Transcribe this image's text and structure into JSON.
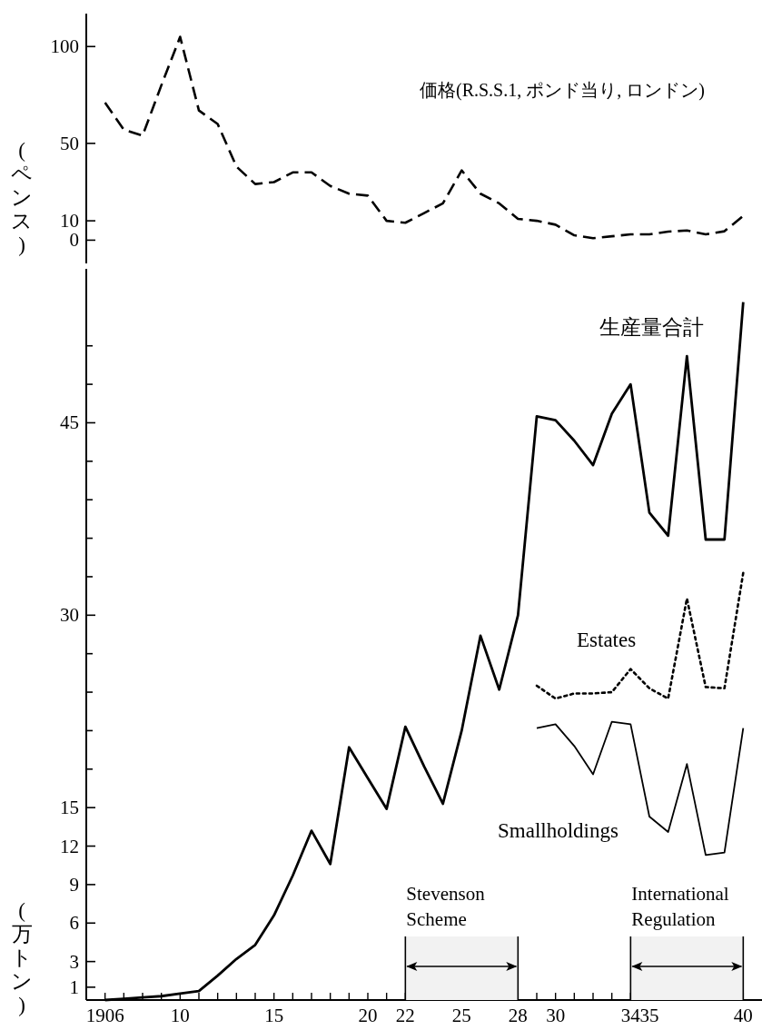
{
  "chart_data": [
    {
      "type": "line",
      "ylabel": "(ペンス)",
      "ylim": [
        -12,
        117
      ],
      "yticks": [
        0,
        10,
        50,
        100
      ],
      "categories": [
        null,
        null,
        null,
        null,
        null,
        null,
        null,
        null,
        null,
        null,
        null,
        null,
        null,
        null,
        null,
        null,
        null,
        null,
        null,
        null,
        null,
        null,
        null,
        null,
        null,
        null,
        null,
        null,
        null,
        null,
        null,
        null,
        null,
        null,
        null
      ],
      "series": [
        {
          "name": "価格(R.S.S.1, ポンド当り, ロンドン)",
          "color": "#000000",
          "line_style": "dashed",
          "values": [
            71,
            57,
            54,
            80,
            105,
            67,
            60,
            38,
            29,
            30,
            35,
            35,
            28,
            24,
            23,
            10,
            9,
            14,
            19,
            36,
            24,
            19,
            11,
            10,
            8,
            2.5,
            1,
            2,
            3,
            3,
            4.4,
            5,
            3,
            4.6,
            12.5
          ]
        }
      ]
    },
    {
      "type": "line",
      "ylabel": "(万トン)",
      "xlim": [
        1905,
        1941
      ],
      "ylim": [
        0,
        57
      ],
      "xticks": [
        1906,
        {
          "value": 1907,
          "label": null
        },
        {
          "value": 1908,
          "label": null
        },
        {
          "value": 1909,
          "label": null
        },
        {
          "value": 1910,
          "label": "10"
        },
        {
          "value": 1911,
          "label": null
        },
        {
          "value": 1912,
          "label": null
        },
        {
          "value": 1913,
          "label": null
        },
        {
          "value": 1914,
          "label": null
        },
        {
          "value": 1915,
          "label": "15"
        },
        {
          "value": 1916,
          "label": null
        },
        {
          "value": 1917,
          "label": null
        },
        {
          "value": 1918,
          "label": null
        },
        {
          "value": 1919,
          "label": null
        },
        {
          "value": 1920,
          "label": "20"
        },
        {
          "value": 1921,
          "label": null
        },
        {
          "value": 1922,
          "label": "22"
        },
        {
          "value": 1923,
          "label": null
        },
        {
          "value": 1924,
          "label": null
        },
        {
          "value": 1925,
          "label": "25"
        },
        {
          "value": 1926,
          "label": null
        },
        {
          "value": 1927,
          "label": null
        },
        {
          "value": 1928,
          "label": "28"
        },
        {
          "value": 1929,
          "label": null
        },
        {
          "value": 1930,
          "label": "30"
        },
        {
          "value": 1931,
          "label": null
        },
        {
          "value": 1932,
          "label": null
        },
        {
          "value": 1933,
          "label": null
        },
        {
          "value": 1934,
          "label": "34"
        },
        {
          "value": 1935,
          "label": "35"
        },
        {
          "value": 1936,
          "label": null
        },
        {
          "value": 1937,
          "label": null
        },
        {
          "value": 1938,
          "label": null
        },
        {
          "value": 1939,
          "label": null
        },
        {
          "value": 1940,
          "label": "40"
        }
      ],
      "yticks": [
        1,
        3,
        6,
        9,
        12,
        15,
        {
          "value": 18,
          "label": null
        },
        {
          "value": 21,
          "label": null
        },
        {
          "value": 24,
          "label": null
        },
        {
          "value": 27,
          "label": null
        },
        30,
        {
          "value": 33,
          "label": null
        },
        {
          "value": 36,
          "label": null
        },
        {
          "value": 39,
          "label": null
        },
        {
          "value": 42,
          "label": null
        },
        45,
        {
          "value": 48,
          "label": null
        },
        {
          "value": 51,
          "label": null
        }
      ],
      "x": [
        1906,
        1907,
        1908,
        1909,
        1910,
        1911,
        1912,
        1913,
        1914,
        1915,
        1916,
        1917,
        1918,
        1919,
        1920,
        1921,
        1922,
        1923,
        1924,
        1925,
        1926,
        1927,
        1928,
        1929,
        1930,
        1931,
        1932,
        1933,
        1934,
        1935,
        1936,
        1937,
        1938,
        1939,
        1940
      ],
      "series": [
        {
          "name": "生産量合計",
          "color": "#000000",
          "line_style": "solid",
          "values": [
            0,
            0.1,
            0.2,
            0.3,
            0.5,
            0.7,
            1.9,
            3.2,
            4.3,
            6.6,
            9.7,
            13.2,
            10.6,
            19.7,
            17.3,
            14.9,
            21.3,
            18.2,
            15.3,
            21,
            28.4,
            24.2,
            30,
            45.5,
            45.2,
            43.6,
            41.7,
            45.7,
            48,
            38,
            36.2,
            50.2,
            35.9,
            35.9,
            54.4
          ]
        },
        {
          "name": "Estates",
          "color": "#000000",
          "line_style": "dotted",
          "values": [
            null,
            null,
            null,
            null,
            null,
            null,
            null,
            null,
            null,
            null,
            null,
            null,
            null,
            null,
            null,
            null,
            null,
            null,
            null,
            null,
            null,
            null,
            null,
            24.5,
            23.5,
            23.9,
            23.9,
            24,
            25.8,
            24.3,
            23.5,
            31.3,
            24.4,
            24.3,
            33.3
          ]
        },
        {
          "name": "Smallholdings",
          "color": "#000000",
          "line_style": "solid",
          "values": [
            null,
            null,
            null,
            null,
            null,
            null,
            null,
            null,
            null,
            null,
            null,
            null,
            null,
            null,
            null,
            null,
            null,
            null,
            null,
            null,
            null,
            null,
            null,
            21.2,
            21.5,
            19.8,
            17.6,
            21.7,
            21.5,
            14.3,
            13.1,
            18.4,
            11.3,
            11.5,
            21.2
          ]
        }
      ],
      "bands": [
        {
          "axis": "x",
          "from": 1922,
          "to": 1928,
          "label": "Stevenson Scheme"
        },
        {
          "axis": "x",
          "from": 1934,
          "to": 1940,
          "label": "International Regulation"
        }
      ]
    }
  ]
}
